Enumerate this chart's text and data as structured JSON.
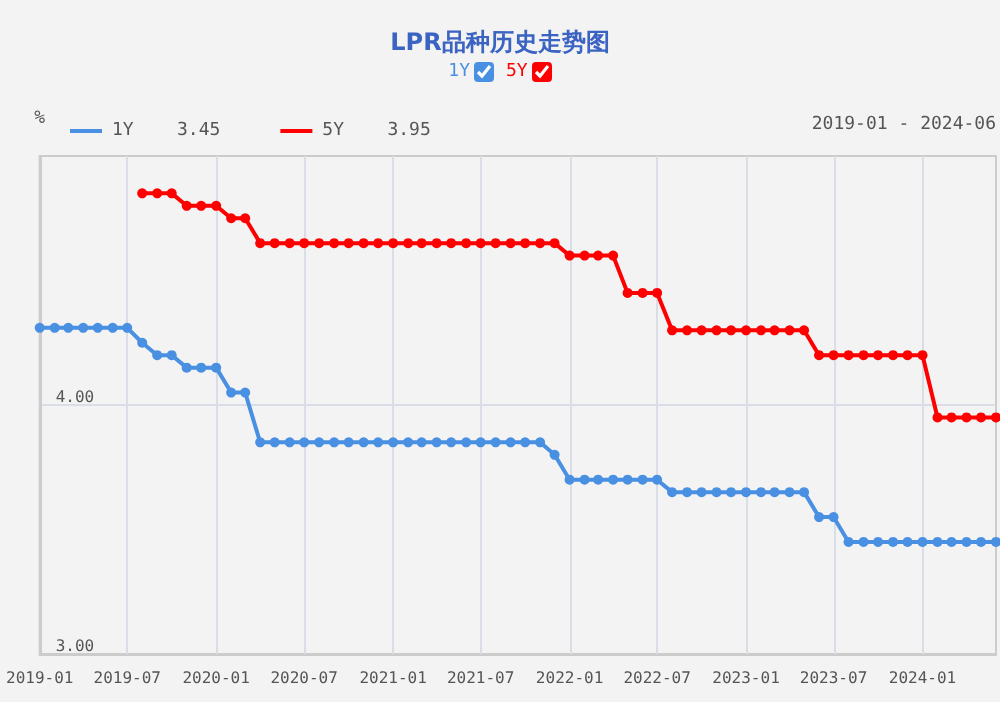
{
  "chart_data": {
    "type": "line",
    "title": "LPR品种历史走势图",
    "ylabel": "%",
    "annotations": [
      "3.45",
      "3.95",
      "2019-01 - 2024-06"
    ],
    "x": [
      "2019-01",
      "2019-02",
      "2019-03",
      "2019-04",
      "2019-05",
      "2019-06",
      "2019-07",
      "2019-08",
      "2019-09",
      "2019-10",
      "2019-11",
      "2019-12",
      "2020-01",
      "2020-02",
      "2020-03",
      "2020-04",
      "2020-05",
      "2020-06",
      "2020-07",
      "2020-08",
      "2020-09",
      "2020-10",
      "2020-11",
      "2020-12",
      "2021-01",
      "2021-02",
      "2021-03",
      "2021-04",
      "2021-05",
      "2021-06",
      "2021-07",
      "2021-08",
      "2021-09",
      "2021-10",
      "2021-11",
      "2021-12",
      "2022-01",
      "2022-02",
      "2022-03",
      "2022-04",
      "2022-05",
      "2022-06",
      "2022-07",
      "2022-08",
      "2022-09",
      "2022-10",
      "2022-11",
      "2022-12",
      "2023-01",
      "2023-02",
      "2023-03",
      "2023-04",
      "2023-05",
      "2023-06",
      "2023-07",
      "2023-08",
      "2023-09",
      "2023-10",
      "2023-11",
      "2023-12",
      "2024-01",
      "2024-02",
      "2024-03",
      "2024-04",
      "2024-05",
      "2024-06"
    ],
    "series": [
      {
        "name": "1Y",
        "color": "#4a90e2",
        "values": [
          4.31,
          4.31,
          4.31,
          4.31,
          4.31,
          4.31,
          4.31,
          4.25,
          4.2,
          4.2,
          4.15,
          4.15,
          4.15,
          4.05,
          4.05,
          3.85,
          3.85,
          3.85,
          3.85,
          3.85,
          3.85,
          3.85,
          3.85,
          3.85,
          3.85,
          3.85,
          3.85,
          3.85,
          3.85,
          3.85,
          3.85,
          3.85,
          3.85,
          3.85,
          3.85,
          3.8,
          3.7,
          3.7,
          3.7,
          3.7,
          3.7,
          3.7,
          3.7,
          3.65,
          3.65,
          3.65,
          3.65,
          3.65,
          3.65,
          3.65,
          3.65,
          3.65,
          3.65,
          3.55,
          3.55,
          3.45,
          3.45,
          3.45,
          3.45,
          3.45,
          3.45,
          3.45,
          3.45,
          3.45,
          3.45,
          3.45
        ]
      },
      {
        "name": "5Y",
        "color": "#ff0000",
        "x": [
          "2019-08",
          "2019-09",
          "2019-10",
          "2019-11",
          "2019-12",
          "2020-01",
          "2020-02",
          "2020-03",
          "2020-04",
          "2020-05",
          "2020-06",
          "2020-07",
          "2020-08",
          "2020-09",
          "2020-10",
          "2020-11",
          "2020-12",
          "2021-01",
          "2021-02",
          "2021-03",
          "2021-04",
          "2021-05",
          "2021-06",
          "2021-07",
          "2021-08",
          "2021-09",
          "2021-10",
          "2021-11",
          "2021-12",
          "2022-01",
          "2022-02",
          "2022-03",
          "2022-04",
          "2022-05",
          "2022-06",
          "2022-07",
          "2022-08",
          "2022-09",
          "2022-10",
          "2022-11",
          "2022-12",
          "2023-01",
          "2023-02",
          "2023-03",
          "2023-04",
          "2023-05",
          "2023-06",
          "2023-07",
          "2023-08",
          "2023-09",
          "2023-10",
          "2023-11",
          "2023-12",
          "2024-01",
          "2024-02",
          "2024-03",
          "2024-04",
          "2024-05",
          "2024-06"
        ],
        "values": [
          4.85,
          4.85,
          4.85,
          4.8,
          4.8,
          4.8,
          4.75,
          4.75,
          4.65,
          4.65,
          4.65,
          4.65,
          4.65,
          4.65,
          4.65,
          4.65,
          4.65,
          4.65,
          4.65,
          4.65,
          4.65,
          4.65,
          4.65,
          4.65,
          4.65,
          4.65,
          4.65,
          4.65,
          4.65,
          4.6,
          4.6,
          4.6,
          4.6,
          4.45,
          4.45,
          4.45,
          4.3,
          4.3,
          4.3,
          4.3,
          4.3,
          4.3,
          4.3,
          4.3,
          4.3,
          4.3,
          4.2,
          4.2,
          4.2,
          4.2,
          4.2,
          4.2,
          4.2,
          4.2,
          3.95,
          3.95,
          3.95,
          3.95,
          3.95
        ]
      }
    ],
    "xlim": [
      "2019-01",
      "2024-06"
    ],
    "xticks": [
      "2019-01",
      "2019-07",
      "2020-01",
      "2020-07",
      "2021-01",
      "2021-07",
      "2022-01",
      "2022-07",
      "2023-01",
      "2023-07",
      "2024-01"
    ],
    "ylim": [
      3,
      5
    ],
    "yticks": [
      {
        "value": 3,
        "label": "3.00"
      },
      {
        "value": 4,
        "label": "4.00"
      }
    ],
    "grid": true,
    "legend": "top left",
    "marker": "circle",
    "line_style": "solid"
  }
}
